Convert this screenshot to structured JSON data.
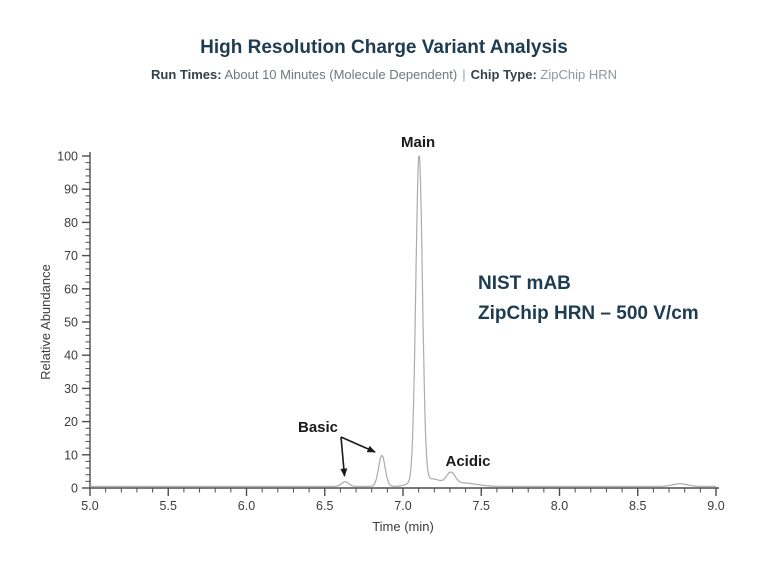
{
  "header": {
    "title": "High Resolution Charge Variant Analysis",
    "run_times_label": "Run Times:",
    "run_times_value": "About 10 Minutes (Molecule Dependent)",
    "separator": "|",
    "chip_type_label": "Chip Type:",
    "chip_type_value": "ZipChip HRN"
  },
  "chart_data": {
    "type": "line",
    "title": "",
    "xlabel": "Time (min)",
    "ylabel": "Relative Abundance",
    "xlim": [
      5.0,
      9.0
    ],
    "ylim": [
      0,
      100
    ],
    "grid": false,
    "x_tick_labels": [
      "5.0",
      "5.5",
      "6.0",
      "6.5",
      "7.0",
      "7.5",
      "8.0",
      "8.5",
      "9.0"
    ],
    "x_minor_tick_step": 0.1,
    "y_tick_labels": [
      "0",
      "10",
      "20",
      "30",
      "40",
      "50",
      "60",
      "70",
      "80",
      "90",
      "100"
    ],
    "y_minor_tick_step": 2,
    "line_color": "#ababab",
    "axis_color": "#4d4d4d",
    "tick_label_color": "#3d3d3d",
    "peak_label_color": "#1a1a1a",
    "baseline": 0.5,
    "peaks": [
      {
        "name": "basic-variant-1",
        "time": 6.63,
        "height": 1.4,
        "sigma": 0.022
      },
      {
        "name": "basic-variant-2",
        "time": 6.865,
        "height": 9.3,
        "sigma": 0.021
      },
      {
        "name": "main-foot",
        "time": 7.05,
        "height": 0.9,
        "sigma": 0.035
      },
      {
        "name": "main",
        "time": 7.103,
        "height": 99.5,
        "sigma": 0.021
      },
      {
        "name": "main-tail",
        "time": 7.19,
        "height": 2.2,
        "sigma": 0.05
      },
      {
        "name": "acidic",
        "time": 7.305,
        "height": 3.6,
        "sigma": 0.028
      },
      {
        "name": "acidic-tail",
        "time": 7.39,
        "height": 1.0,
        "sigma": 0.08
      },
      {
        "name": "late-bump",
        "time": 8.77,
        "height": 0.8,
        "sigma": 0.045
      }
    ],
    "peak_labels": [
      {
        "id": "main",
        "text": "Main"
      },
      {
        "id": "basic",
        "text": "Basic"
      },
      {
        "id": "acidic",
        "text": "Acidic"
      }
    ],
    "annotation": {
      "lines": [
        "NIST mAB",
        "ZipChip HRN – 500 V/cm"
      ],
      "color": "#1d3c52"
    }
  }
}
